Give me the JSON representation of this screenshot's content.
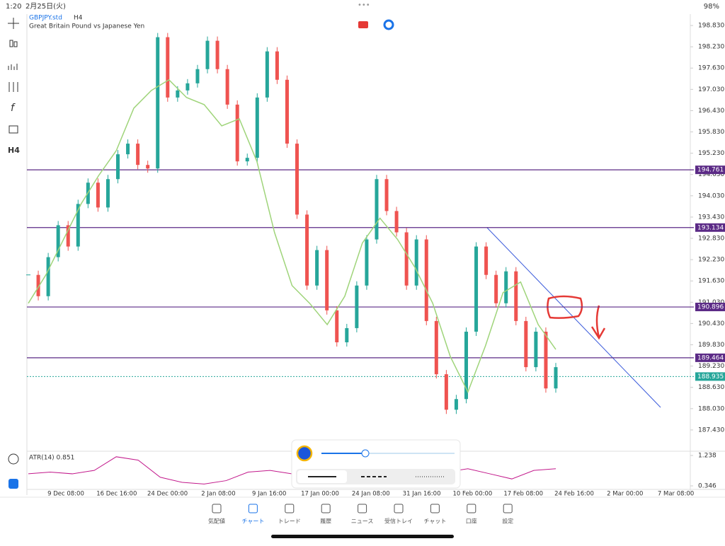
{
  "status_bar": {
    "time": "1:20",
    "date": "2月25日(火)",
    "battery": "98%"
  },
  "header": {
    "symbol": "GBPJPY.std",
    "timeframe": "H4",
    "description": "Great Britain Pound vs Japanese Yen"
  },
  "toolbar": {
    "timeframe": "H4"
  },
  "chart_data": {
    "type": "candlestick",
    "ylim": [
      186.83,
      199.11
    ],
    "yticks": [
      {
        "value": 198.83,
        "label": "198.830"
      },
      {
        "value": 198.23,
        "label": "198.230"
      },
      {
        "value": 197.63,
        "label": "197.630"
      },
      {
        "value": 197.03,
        "label": "197.030"
      },
      {
        "value": 196.43,
        "label": "196.430"
      },
      {
        "value": 195.83,
        "label": "195.830"
      },
      {
        "value": 195.23,
        "label": "195.230"
      },
      {
        "value": 194.63,
        "label": "194.630"
      },
      {
        "value": 194.03,
        "label": "194.030"
      },
      {
        "value": 193.43,
        "label": "193.430"
      },
      {
        "value": 192.83,
        "label": "192.830"
      },
      {
        "value": 192.23,
        "label": "192.230"
      },
      {
        "value": 191.63,
        "label": "191.630"
      },
      {
        "value": 191.03,
        "label": "191.030"
      },
      {
        "value": 190.43,
        "label": "190.430"
      },
      {
        "value": 189.83,
        "label": "189.830"
      },
      {
        "value": 189.23,
        "label": "189.230"
      },
      {
        "value": 188.63,
        "label": "188.630"
      },
      {
        "value": 188.03,
        "label": "188.030"
      },
      {
        "value": 187.43,
        "label": "187.430"
      }
    ],
    "levels": [
      194.761,
      193.134,
      190.896,
      189.464
    ],
    "level_color": "#5b2a86",
    "current": 188.935,
    "current_color": "#26a69a",
    "closes": [
      191.8,
      191.2,
      192.3,
      193.2,
      192.6,
      193.8,
      194.4,
      193.7,
      194.5,
      195.2,
      195.5,
      194.9,
      194.8,
      198.5,
      196.8,
      197.0,
      197.2,
      197.6,
      198.4,
      197.6,
      196.6,
      195.0,
      195.1,
      196.8,
      198.1,
      197.3,
      195.5,
      193.5,
      191.5,
      192.5,
      190.8,
      189.9,
      190.3,
      191.5,
      192.8,
      194.5,
      193.6,
      193.0,
      191.5,
      192.8,
      190.5,
      189.0,
      188.0,
      188.3,
      190.2,
      192.6,
      191.8,
      191.0,
      191.9,
      190.5,
      189.2,
      190.2,
      188.6,
      189.2
    ],
    "up_color": "#26a69a",
    "down_color": "#ef5350",
    "ma": [
      191.0,
      191.8,
      192.8,
      193.8,
      194.6,
      195.3,
      196.5,
      197.0,
      197.3,
      196.8,
      196.6,
      196.0,
      196.2,
      195.0,
      193.0,
      191.5,
      191.0,
      190.4,
      191.2,
      192.7,
      193.4,
      192.8,
      192.0,
      191.0,
      189.5,
      188.5,
      189.8,
      191.3,
      191.6,
      190.4,
      189.7
    ],
    "ma_color": "#9fd47a",
    "atr_label": "ATR(14) 0.851",
    "atr_ylim": [
      0.346,
      1.238
    ],
    "atr_yticks": [
      1.238,
      0.346
    ],
    "atr_color": "#c2188b",
    "atr": [
      0.7,
      0.75,
      0.7,
      0.8,
      1.2,
      1.1,
      0.6,
      0.45,
      0.4,
      0.5,
      0.75,
      0.8,
      0.7,
      0.85,
      0.95,
      0.9,
      0.8,
      0.75,
      0.7,
      0.75,
      0.85,
      0.7,
      0.55,
      0.8,
      0.85
    ],
    "time_labels": [
      "9 Dec 08:00",
      "16 Dec 16:00",
      "24 Dec 00:00",
      "2 Jan 08:00",
      "9 Jan 16:00",
      "17 Jan 00:00",
      "24 Jan 08:00",
      "31 Jan 16:00",
      "10 Feb 00:00",
      "17 Feb 08:00",
      "24 Feb 16:00",
      "2 Mar 00:00",
      "7 Mar 08:00"
    ]
  },
  "tabs": [
    "気配値",
    "チャート",
    "トレード",
    "履歴",
    "ニュース",
    "受信トレイ",
    "チャット",
    "口座",
    "設定"
  ]
}
